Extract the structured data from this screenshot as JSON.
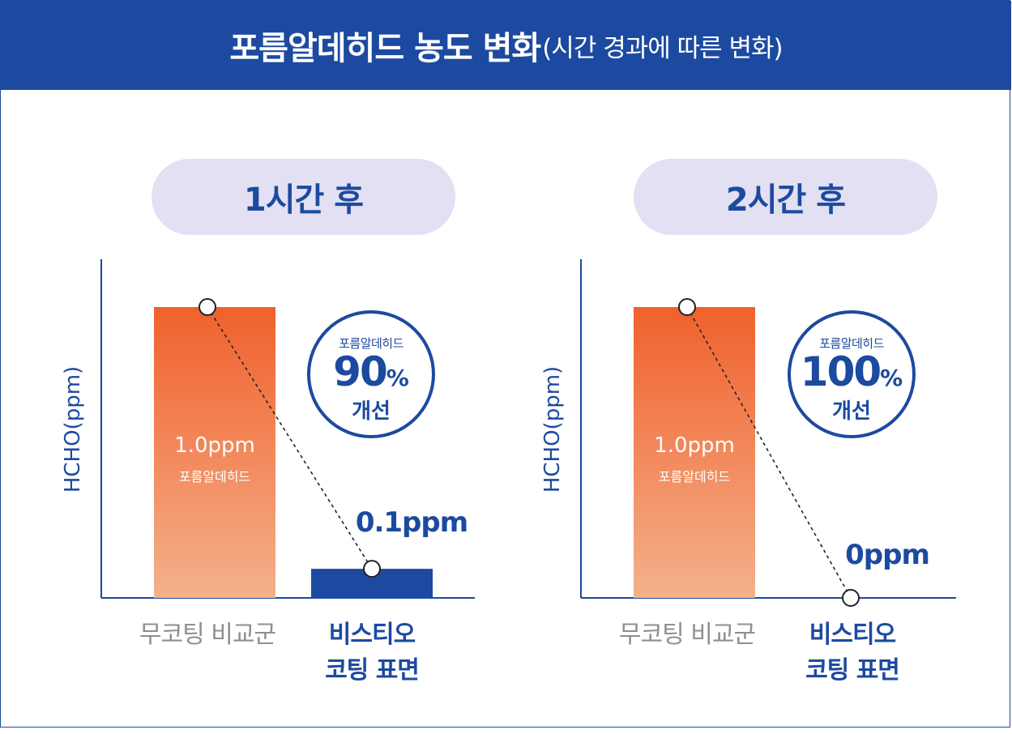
{
  "header": {
    "title_main": "포름알데히드 농도 변화",
    "title_sub": "(시간 경과에 따른 변화)"
  },
  "colors": {
    "brand_blue": "#1c4aa0",
    "bar_top": "#f0612c",
    "bar_bottom": "#f3b18b",
    "pill_bg": "#e2e0f2",
    "label_grey": "#8f8f8f"
  },
  "chart_data": [
    {
      "type": "bar",
      "pill_label": "1시간 후",
      "ylabel": "HCHO(ppm)",
      "categories": [
        "무코팅 비교군",
        "비스티오\n코팅 표면"
      ],
      "category_lines": [
        [
          "무코팅 비교군"
        ],
        [
          "비스티오",
          "코팅 표면"
        ]
      ],
      "values": [
        1.0,
        0.1
      ],
      "unit": "ppm",
      "bar_value_label": "1.0ppm",
      "bar_inner_label": "포름알데히드",
      "point_value_label": "0.1ppm",
      "ylim": [
        0,
        1.0
      ],
      "badge": {
        "title": "포름알데히드",
        "percent": "90",
        "percent_sign": "%",
        "word": "개선"
      }
    },
    {
      "type": "bar",
      "pill_label": "2시간 후",
      "ylabel": "HCHO(ppm)",
      "categories": [
        "무코팅 비교군",
        "비스티오\n코팅 표면"
      ],
      "category_lines": [
        [
          "무코팅 비교군"
        ],
        [
          "비스티오",
          "코팅 표면"
        ]
      ],
      "values": [
        1.0,
        0
      ],
      "unit": "ppm",
      "bar_value_label": "1.0ppm",
      "bar_inner_label": "포름알데히드",
      "point_value_label": "0ppm",
      "ylim": [
        0,
        1.0
      ],
      "badge": {
        "title": "포름알데히드",
        "percent": "100",
        "percent_sign": "%",
        "word": "개선"
      }
    }
  ]
}
